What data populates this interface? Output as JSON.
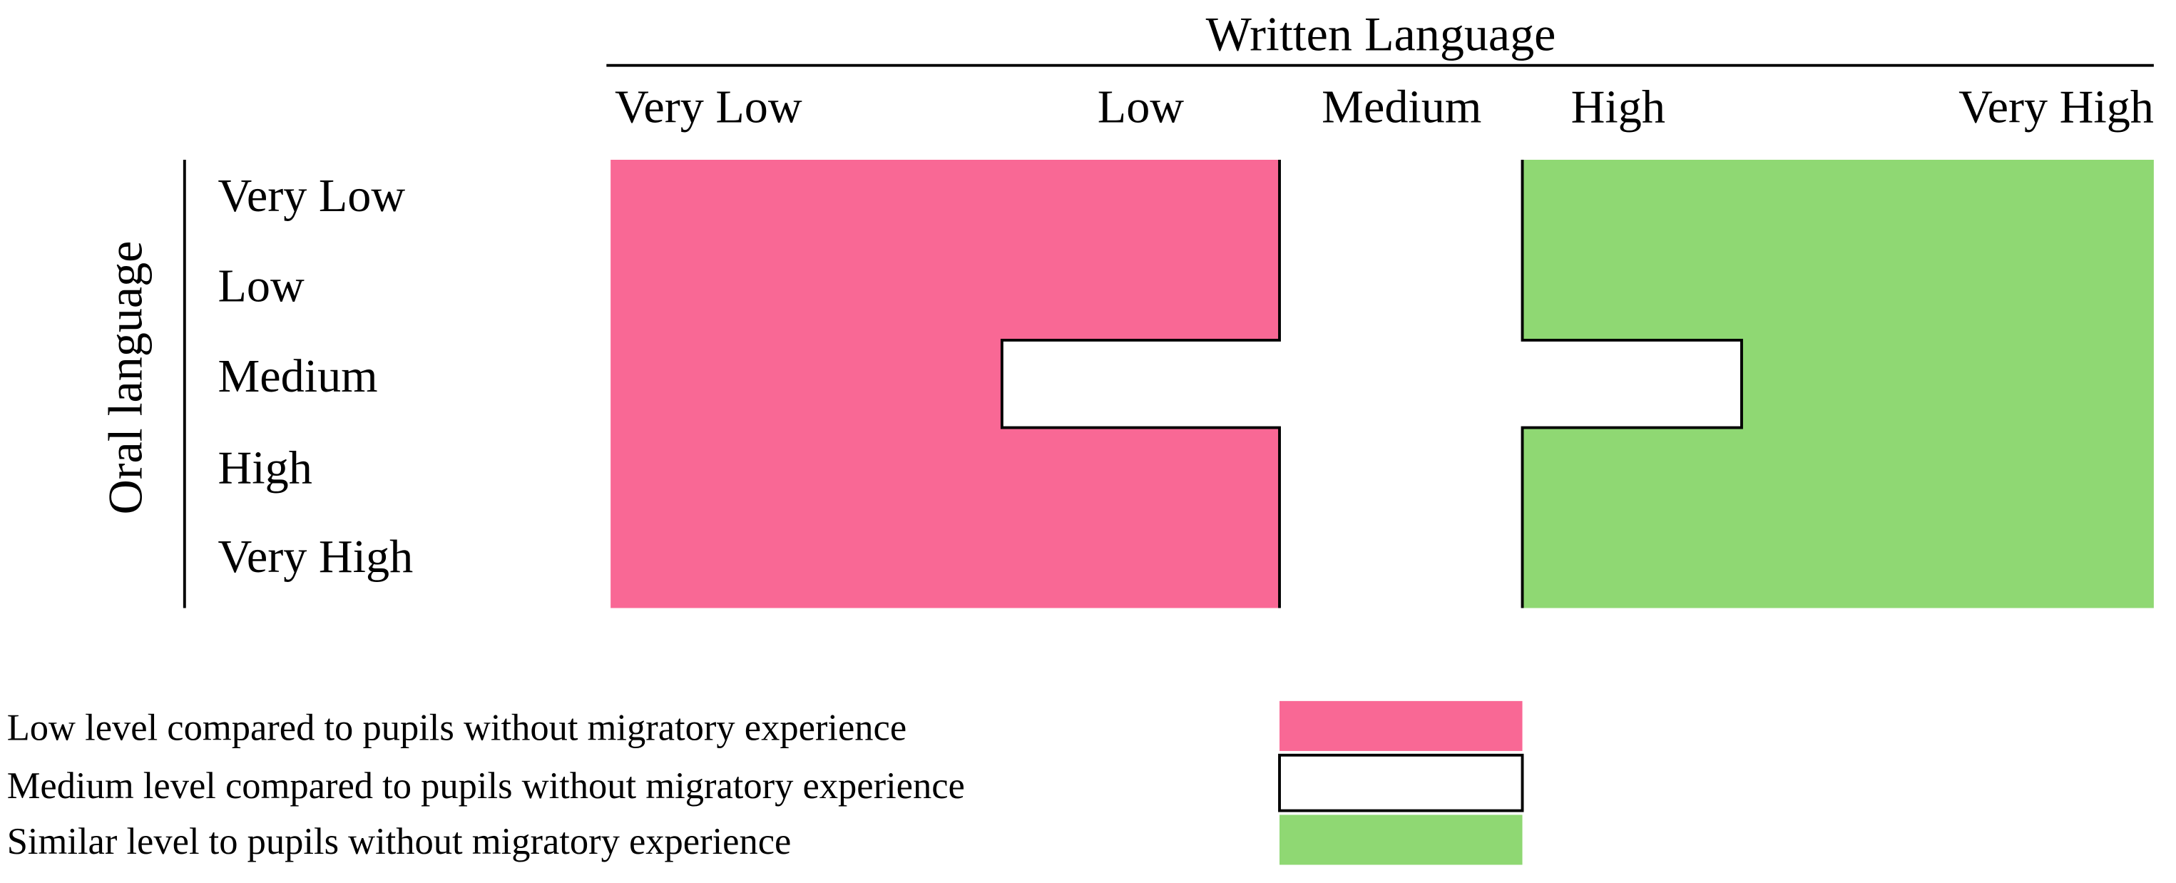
{
  "header": {
    "title": "Written Language",
    "columns": [
      "Very Low",
      "Low",
      "Medium",
      "High",
      "Very High"
    ]
  },
  "rows": {
    "title": "Oral language",
    "labels": [
      "Very Low",
      "Low",
      "Medium",
      "High",
      "Very High"
    ]
  },
  "legend": [
    {
      "label": "Low level compared to pupils without migratory experience"
    },
    {
      "label": "Medium level compared to pupils without migratory experience"
    },
    {
      "label": "Similar level to pupils without migratory experience"
    }
  ]
}
